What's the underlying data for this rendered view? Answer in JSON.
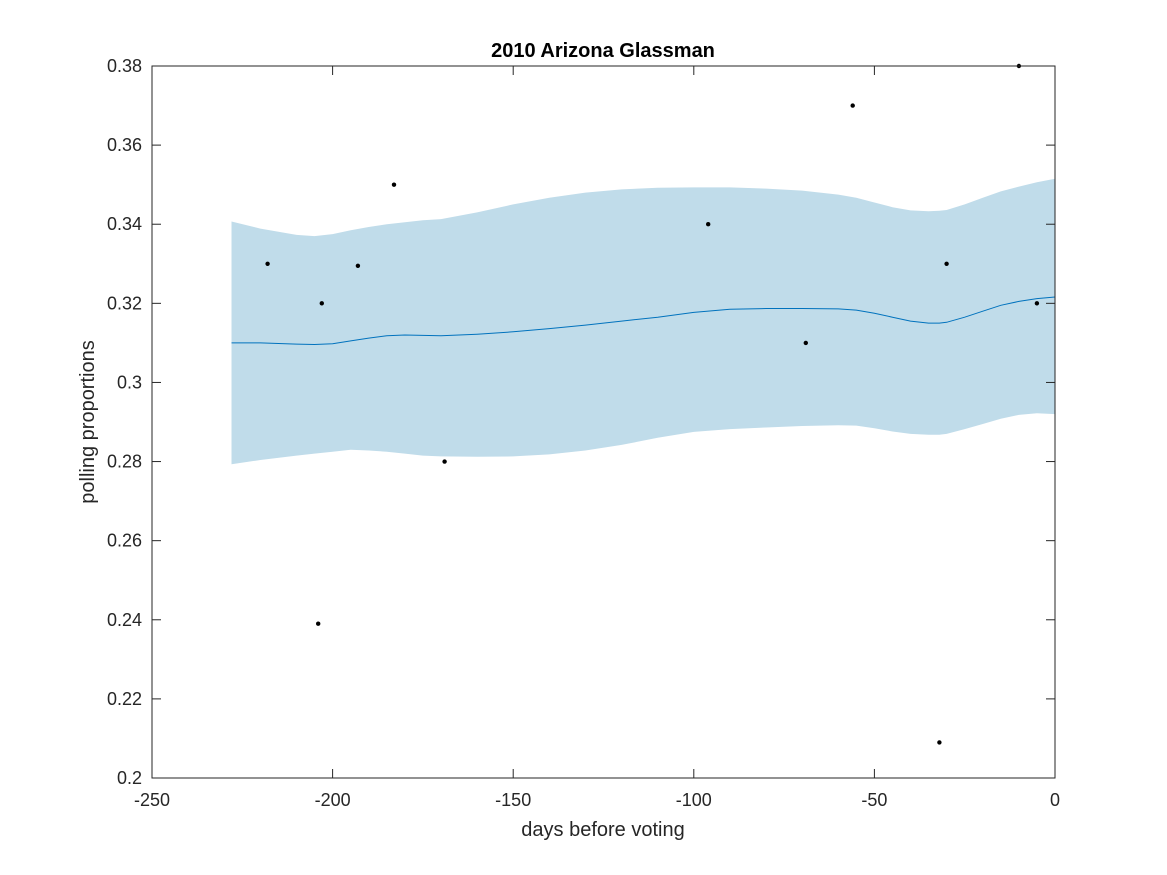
{
  "chart_data": {
    "type": "scatter",
    "title": "2010 Arizona Glassman",
    "xlabel": "days before voting",
    "ylabel": "polling proportions",
    "xlim": [
      -250,
      0
    ],
    "ylim": [
      0.2,
      0.38
    ],
    "xticks": [
      -250,
      -200,
      -150,
      -100,
      -50,
      0
    ],
    "xtick_labels": [
      "-250",
      "-200",
      "-150",
      "-100",
      "-50",
      "0"
    ],
    "yticks": [
      0.2,
      0.22,
      0.24,
      0.26,
      0.28,
      0.3,
      0.32,
      0.34,
      0.36,
      0.38
    ],
    "ytick_labels": [
      "0.2",
      "0.22",
      "0.24",
      "0.26",
      "0.28",
      "0.3",
      "0.32",
      "0.34",
      "0.36",
      "0.38"
    ],
    "grid": false,
    "colors": {
      "band": "#c0dcea",
      "trend": "#0072bd",
      "points": "#000000",
      "axes": "#262626"
    },
    "points": [
      {
        "x": -218,
        "y": 0.33
      },
      {
        "x": -204,
        "y": 0.239
      },
      {
        "x": -203,
        "y": 0.32
      },
      {
        "x": -193,
        "y": 0.3295
      },
      {
        "x": -183,
        "y": 0.35
      },
      {
        "x": -169,
        "y": 0.28
      },
      {
        "x": -96,
        "y": 0.34
      },
      {
        "x": -69,
        "y": 0.31
      },
      {
        "x": -56,
        "y": 0.37
      },
      {
        "x": -32,
        "y": 0.209
      },
      {
        "x": -30,
        "y": 0.33
      },
      {
        "x": -10,
        "y": 0.38
      },
      {
        "x": -5,
        "y": 0.32
      }
    ],
    "trend": {
      "x": [
        -228,
        -220,
        -210,
        -205,
        -200,
        -195,
        -190,
        -185,
        -180,
        -175,
        -170,
        -160,
        -150,
        -140,
        -130,
        -120,
        -110,
        -100,
        -90,
        -80,
        -70,
        -60,
        -55,
        -50,
        -45,
        -40,
        -35,
        -32,
        -30,
        -25,
        -20,
        -15,
        -10,
        -5,
        0
      ],
      "y": [
        0.31,
        0.31,
        0.3097,
        0.3096,
        0.3098,
        0.3105,
        0.3112,
        0.3118,
        0.312,
        0.3119,
        0.3118,
        0.3122,
        0.3128,
        0.3136,
        0.3145,
        0.3155,
        0.3165,
        0.3177,
        0.3185,
        0.3187,
        0.3187,
        0.3186,
        0.3183,
        0.3175,
        0.3165,
        0.3155,
        0.315,
        0.315,
        0.3152,
        0.3165,
        0.318,
        0.3195,
        0.3205,
        0.3212,
        0.3216
      ]
    },
    "band": {
      "x": [
        -228,
        -220,
        -210,
        -205,
        -200,
        -195,
        -190,
        -185,
        -180,
        -175,
        -170,
        -160,
        -150,
        -140,
        -130,
        -120,
        -110,
        -100,
        -90,
        -80,
        -70,
        -60,
        -55,
        -50,
        -45,
        -40,
        -35,
        -32,
        -30,
        -25,
        -20,
        -15,
        -10,
        -5,
        0
      ],
      "upper": [
        0.3407,
        0.3389,
        0.3373,
        0.337,
        0.3375,
        0.3385,
        0.3393,
        0.34,
        0.3405,
        0.341,
        0.3413,
        0.343,
        0.345,
        0.3467,
        0.348,
        0.3488,
        0.3492,
        0.3493,
        0.3493,
        0.349,
        0.3485,
        0.3475,
        0.3467,
        0.3455,
        0.3443,
        0.3435,
        0.3433,
        0.3434,
        0.3436,
        0.345,
        0.3467,
        0.3483,
        0.3495,
        0.3506,
        0.3515
      ],
      "lower": [
        0.2793,
        0.2804,
        0.2815,
        0.282,
        0.2825,
        0.283,
        0.2828,
        0.2825,
        0.282,
        0.2815,
        0.2813,
        0.2812,
        0.2813,
        0.2818,
        0.2828,
        0.2842,
        0.286,
        0.2875,
        0.2882,
        0.2886,
        0.289,
        0.2892,
        0.2891,
        0.2884,
        0.2876,
        0.287,
        0.2868,
        0.2868,
        0.287,
        0.2882,
        0.2895,
        0.2908,
        0.2918,
        0.2922,
        0.292
      ]
    }
  }
}
